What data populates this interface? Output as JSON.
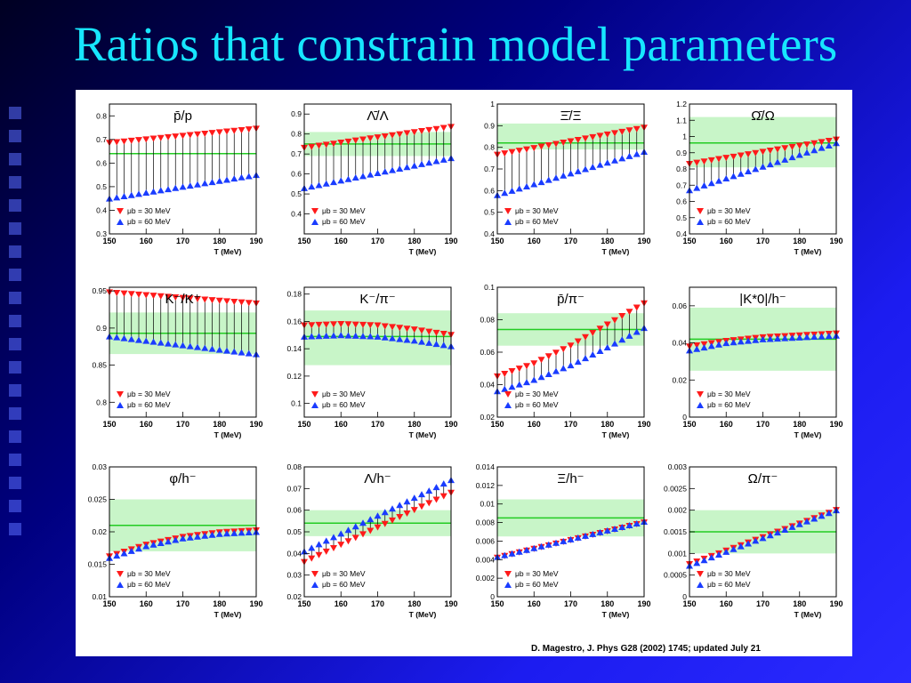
{
  "slide": {
    "title": "Ratios that constrain model parameters",
    "citation": "D. Magestro, J. Phys G28 (2002) 1745;   updated July 21"
  },
  "colors": {
    "title": "#17e6ff",
    "mu30": "#ff1a1a",
    "mu60": "#1a3cff",
    "band": "#c8f5c8",
    "line": "#22cc22"
  },
  "legend": {
    "mu30": "μb = 30 MeV",
    "mu60": "μb = 60 MeV"
  },
  "chart_data": [
    {
      "type": "scatter",
      "title": "p̄/p",
      "xlabel": "T (MeV)",
      "xlim": [
        150,
        190
      ],
      "ylim": [
        0.3,
        0.85
      ],
      "xticks": [
        150,
        160,
        170,
        180,
        190
      ],
      "yticks": [
        0.3,
        0.4,
        0.5,
        0.6,
        0.7,
        0.8
      ],
      "yticklabels": [
        "0.3",
        "0.4",
        "0.5",
        "0.6",
        "0.7",
        "0.8"
      ],
      "series": [
        {
          "name": "μb = 30 MeV",
          "x": [
            150,
            190
          ],
          "y": [
            0.685,
            0.745
          ]
        },
        {
          "name": "μb = 60 MeV",
          "x": [
            150,
            190
          ],
          "y": [
            0.45,
            0.55
          ]
        }
      ],
      "measurement": {
        "value": 0.64,
        "band": null
      }
    },
    {
      "type": "scatter",
      "title": "Λ̄/Λ",
      "xlabel": "T (MeV)",
      "xlim": [
        150,
        190
      ],
      "ylim": [
        0.3,
        0.95
      ],
      "xticks": [
        150,
        160,
        170,
        180,
        190
      ],
      "yticks": [
        0.4,
        0.5,
        0.6,
        0.7,
        0.8,
        0.9
      ],
      "yticklabels": [
        "0.4",
        "0.5",
        "0.6",
        "0.7",
        "0.8",
        "0.9"
      ],
      "series": [
        {
          "name": "μb = 30 MeV",
          "x": [
            150,
            190
          ],
          "y": [
            0.73,
            0.835
          ]
        },
        {
          "name": "μb = 60 MeV",
          "x": [
            150,
            190
          ],
          "y": [
            0.53,
            0.68
          ]
        }
      ],
      "measurement": {
        "value": 0.75,
        "band": [
          0.69,
          0.81
        ]
      }
    },
    {
      "type": "scatter",
      "title": "Ξ̄/Ξ",
      "xlabel": "T (MeV)",
      "xlim": [
        150,
        190
      ],
      "ylim": [
        0.4,
        1.0
      ],
      "xticks": [
        150,
        160,
        170,
        180,
        190
      ],
      "yticks": [
        0.4,
        0.5,
        0.6,
        0.7,
        0.8,
        0.9,
        1.0
      ],
      "yticklabels": [
        "0.4",
        "0.5",
        "0.6",
        "0.7",
        "0.8",
        "0.9",
        "1"
      ],
      "series": [
        {
          "name": "μb = 30 MeV",
          "x": [
            150,
            190
          ],
          "y": [
            0.765,
            0.89
          ]
        },
        {
          "name": "μb = 60 MeV",
          "x": [
            150,
            190
          ],
          "y": [
            0.58,
            0.78
          ]
        }
      ],
      "measurement": {
        "value": 0.82,
        "band": [
          0.79,
          0.91
        ]
      }
    },
    {
      "type": "scatter",
      "title": "Ω̄/Ω",
      "xlabel": "T (MeV)",
      "xlim": [
        150,
        190
      ],
      "ylim": [
        0.4,
        1.2
      ],
      "xticks": [
        150,
        160,
        170,
        180,
        190
      ],
      "yticks": [
        0.4,
        0.5,
        0.6,
        0.7,
        0.8,
        0.9,
        1.0,
        1.1,
        1.2
      ],
      "yticklabels": [
        "0.4",
        "0.5",
        "0.6",
        "0.7",
        "0.8",
        "0.9",
        "1",
        "1.1",
        "1.2"
      ],
      "series": [
        {
          "name": "μb = 30 MeV",
          "x": [
            150,
            190
          ],
          "y": [
            0.83,
            0.98
          ]
        },
        {
          "name": "μb = 60 MeV",
          "x": [
            150,
            190
          ],
          "y": [
            0.67,
            0.96
          ]
        }
      ],
      "measurement": {
        "value": 0.96,
        "band": [
          0.81,
          1.12
        ]
      }
    },
    {
      "type": "scatter",
      "title": "K⁻/K⁺",
      "xlabel": "T (MeV)",
      "xlim": [
        150,
        190
      ],
      "ylim": [
        0.78,
        0.955
      ],
      "xticks": [
        150,
        160,
        170,
        180,
        190
      ],
      "yticks": [
        0.8,
        0.85,
        0.9,
        0.95
      ],
      "yticklabels": [
        "0.8",
        "0.85",
        "0.9",
        "0.95"
      ],
      "series": [
        {
          "name": "μb = 30 MeV",
          "x": [
            150,
            190
          ],
          "y": [
            0.948,
            0.933
          ]
        },
        {
          "name": "μb = 60 MeV",
          "x": [
            150,
            190
          ],
          "y": [
            0.889,
            0.865
          ]
        }
      ],
      "measurement": {
        "value": 0.893,
        "band": [
          0.865,
          0.921
        ]
      }
    },
    {
      "type": "scatter",
      "title": "K⁻/π⁻",
      "xlabel": "T (MeV)",
      "xlim": [
        150,
        190
      ],
      "ylim": [
        0.09,
        0.185
      ],
      "xticks": [
        150,
        160,
        170,
        180,
        190
      ],
      "yticks": [
        0.1,
        0.12,
        0.14,
        0.16,
        0.18
      ],
      "yticklabels": [
        "0.1",
        "0.12",
        "0.14",
        "0.16",
        "0.18"
      ],
      "series": [
        {
          "name": "μb = 30 MeV",
          "x": [
            150,
            160,
            170,
            180,
            190
          ],
          "y": [
            0.157,
            0.158,
            0.157,
            0.154,
            0.15
          ]
        },
        {
          "name": "μb = 60 MeV",
          "x": [
            150,
            160,
            170,
            180,
            190
          ],
          "y": [
            0.149,
            0.15,
            0.149,
            0.146,
            0.142
          ]
        }
      ],
      "measurement": {
        "value": 0.149,
        "band": [
          0.128,
          0.168
        ]
      }
    },
    {
      "type": "scatter",
      "title": "p̄/π⁻",
      "xlabel": "T (MeV)",
      "xlim": [
        150,
        190
      ],
      "ylim": [
        0.02,
        0.1
      ],
      "xticks": [
        150,
        160,
        170,
        180,
        190
      ],
      "yticks": [
        0.02,
        0.04,
        0.06,
        0.08,
        0.1
      ],
      "yticklabels": [
        "0.02",
        "0.04",
        "0.06",
        "0.08",
        "0.1"
      ],
      "series": [
        {
          "name": "μb = 30 MeV",
          "x": [
            150,
            160,
            170,
            180,
            190
          ],
          "y": [
            0.045,
            0.053,
            0.064,
            0.077,
            0.09
          ]
        },
        {
          "name": "μb = 60 MeV",
          "x": [
            150,
            160,
            170,
            180,
            190
          ],
          "y": [
            0.036,
            0.043,
            0.052,
            0.063,
            0.075
          ]
        }
      ],
      "measurement": {
        "value": 0.074,
        "band": [
          0.064,
          0.084
        ]
      }
    },
    {
      "type": "scatter",
      "title": "|K*0|/h⁻",
      "xlabel": "T (MeV)",
      "xlim": [
        150,
        190
      ],
      "ylim": [
        0.0,
        0.07
      ],
      "xticks": [
        150,
        160,
        170,
        180,
        190
      ],
      "yticks": [
        0.0,
        0.02,
        0.04,
        0.06
      ],
      "yticklabels": [
        "0",
        "0.02",
        "0.04",
        "0.06"
      ],
      "series": [
        {
          "name": "μb = 30 MeV",
          "x": [
            150,
            160,
            170,
            180,
            190
          ],
          "y": [
            0.038,
            0.041,
            0.043,
            0.044,
            0.045
          ]
        },
        {
          "name": "μb = 60 MeV",
          "x": [
            150,
            160,
            170,
            180,
            190
          ],
          "y": [
            0.036,
            0.04,
            0.042,
            0.043,
            0.044
          ]
        }
      ],
      "measurement": {
        "value": 0.042,
        "band": [
          0.025,
          0.059
        ]
      }
    },
    {
      "type": "scatter",
      "title": "φ/h⁻",
      "xlabel": "T (MeV)",
      "xlim": [
        150,
        190
      ],
      "ylim": [
        0.01,
        0.03
      ],
      "xticks": [
        150,
        160,
        170,
        180,
        190
      ],
      "yticks": [
        0.01,
        0.015,
        0.02,
        0.025,
        0.03
      ],
      "yticklabels": [
        "0.01",
        "0.015",
        "0.02",
        "0.025",
        "0.03"
      ],
      "series": [
        {
          "name": "μb = 30 MeV",
          "x": [
            150,
            160,
            170,
            180,
            190
          ],
          "y": [
            0.0162,
            0.018,
            0.0192,
            0.0199,
            0.0202
          ]
        },
        {
          "name": "μb = 60 MeV",
          "x": [
            150,
            160,
            170,
            180,
            190
          ],
          "y": [
            0.016,
            0.0178,
            0.019,
            0.0197,
            0.02
          ]
        }
      ],
      "measurement": {
        "value": 0.021,
        "band": [
          0.017,
          0.025
        ]
      }
    },
    {
      "type": "scatter",
      "title": "Λ/h⁻",
      "xlabel": "T (MeV)",
      "xlim": [
        150,
        190
      ],
      "ylim": [
        0.02,
        0.08
      ],
      "xticks": [
        150,
        160,
        170,
        180,
        190
      ],
      "yticks": [
        0.02,
        0.03,
        0.04,
        0.05,
        0.06,
        0.07,
        0.08
      ],
      "yticklabels": [
        "0.02",
        "0.03",
        "0.04",
        "0.05",
        "0.06",
        "0.07",
        "0.08"
      ],
      "series": [
        {
          "name": "μb = 30 MeV",
          "x": [
            150,
            190
          ],
          "y": [
            0.036,
            0.068
          ]
        },
        {
          "name": "μb = 60 MeV",
          "x": [
            150,
            190
          ],
          "y": [
            0.041,
            0.074
          ]
        }
      ],
      "measurement": {
        "value": 0.054,
        "band": [
          0.048,
          0.06
        ]
      }
    },
    {
      "type": "scatter",
      "title": "Ξ/h⁻",
      "xlabel": "T (MeV)",
      "xlim": [
        150,
        190
      ],
      "ylim": [
        0.0,
        0.014
      ],
      "xticks": [
        150,
        160,
        170,
        180,
        190
      ],
      "yticks": [
        0.0,
        0.002,
        0.004,
        0.006,
        0.008,
        0.01,
        0.012,
        0.014
      ],
      "yticklabels": [
        "0",
        "0.002",
        "0.004",
        "0.006",
        "0.008",
        "0.01",
        "0.012",
        "0.014"
      ],
      "series": [
        {
          "name": "μb = 30 MeV",
          "x": [
            150,
            190
          ],
          "y": [
            0.0042,
            0.008
          ]
        },
        {
          "name": "μb = 60 MeV",
          "x": [
            150,
            190
          ],
          "y": [
            0.0043,
            0.0081
          ]
        }
      ],
      "measurement": {
        "value": 0.0085,
        "band": [
          0.0065,
          0.0105
        ]
      }
    },
    {
      "type": "scatter",
      "title": "Ω/π⁻",
      "xlabel": "T (MeV)",
      "xlim": [
        150,
        190
      ],
      "ylim": [
        0.0,
        0.003
      ],
      "xticks": [
        150,
        160,
        170,
        180,
        190
      ],
      "yticks": [
        0.0,
        0.0005,
        0.001,
        0.0015,
        0.002,
        0.0025,
        0.003
      ],
      "yticklabels": [
        "0",
        "0.0005",
        "0.001",
        "0.0015",
        "0.002",
        "0.0025",
        "0.003"
      ],
      "series": [
        {
          "name": "μb = 30 MeV",
          "x": [
            150,
            190
          ],
          "y": [
            0.00075,
            0.002
          ]
        },
        {
          "name": "μb = 60 MeV",
          "x": [
            150,
            190
          ],
          "y": [
            0.00072,
            0.002
          ]
        }
      ],
      "measurement": {
        "value": 0.0015,
        "band": [
          0.001,
          0.002
        ]
      }
    }
  ]
}
